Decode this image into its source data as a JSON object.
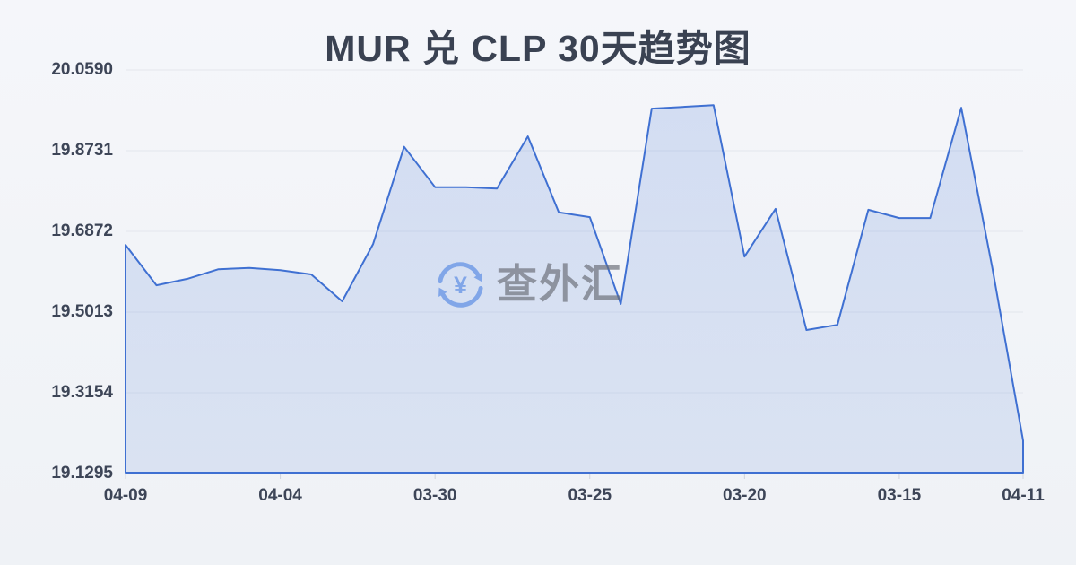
{
  "title": "MUR 兑 CLP 30天趋势图",
  "watermark": {
    "icon": "currency-exchange-icon",
    "symbol": "¥",
    "text": "查外汇"
  },
  "colors": {
    "line": "#3f70d2",
    "fill_top": "rgba(69,117,213,0.19)",
    "fill_bottom": "rgba(69,117,213,0.13)",
    "grid": "#e3e6ed",
    "tick": "#cfd3db",
    "title_text": "#3a4252",
    "axis_text": "#3d4557",
    "watermark_icon": "#7aa2e8"
  },
  "chart_data": {
    "type": "area",
    "title": "MUR 兑 CLP 30天趋势图",
    "xlabel": "",
    "ylabel": "",
    "ylim": [
      19.1295,
      20.059
    ],
    "grid": true,
    "legend_position": "none",
    "y_tick_labels": [
      "20.0590",
      "19.8731",
      "19.6872",
      "19.5013",
      "19.3154",
      "19.1295"
    ],
    "x_tick_labels": [
      "04-09",
      "04-04",
      "03-30",
      "03-25",
      "03-20",
      "03-15",
      "04-11"
    ],
    "x_tick_indices": [
      0,
      5,
      10,
      15,
      20,
      25,
      29
    ],
    "values": [
      19.656,
      19.563,
      19.578,
      19.6,
      19.603,
      19.598,
      19.588,
      19.526,
      19.658,
      19.882,
      19.789,
      19.789,
      19.786,
      19.906,
      19.731,
      19.72,
      19.52,
      19.97,
      19.974,
      19.978,
      19.629,
      19.739,
      19.46,
      19.472,
      19.737,
      19.718,
      19.718,
      19.972,
      19.605,
      19.205
    ]
  }
}
